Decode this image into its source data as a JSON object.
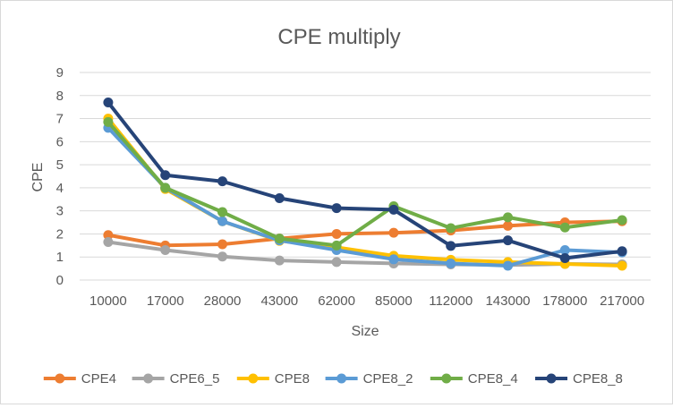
{
  "chart_data": {
    "type": "line",
    "title": "CPE multiply",
    "xlabel": "Size",
    "ylabel": "CPE",
    "ylim": [
      0,
      9
    ],
    "yticks": [
      0,
      1,
      2,
      3,
      4,
      5,
      6,
      7,
      8,
      9
    ],
    "grid": true,
    "legend": "bottom",
    "categories": [
      "10000",
      "17000",
      "28000",
      "43000",
      "62000",
      "85000",
      "112000",
      "143000",
      "178000",
      "217000"
    ],
    "series": [
      {
        "name": "CPE4",
        "color": "#ED7D31",
        "values": [
          1.95,
          1.5,
          1.55,
          1.8,
          2.0,
          2.05,
          2.15,
          2.35,
          2.5,
          2.55
        ]
      },
      {
        "name": "CPE6_5",
        "color": "#A5A5A5",
        "values": [
          1.65,
          1.3,
          1.02,
          0.85,
          0.78,
          0.72,
          0.68,
          0.65,
          0.7,
          0.68
        ]
      },
      {
        "name": "CPE8",
        "color": "#FFC000",
        "values": [
          7.0,
          3.95,
          2.55,
          1.7,
          1.42,
          1.05,
          0.88,
          0.78,
          0.7,
          0.62
        ]
      },
      {
        "name": "CPE8_2",
        "color": "#5B9BD5",
        "values": [
          6.6,
          4.0,
          2.55,
          1.72,
          1.3,
          0.9,
          0.72,
          0.62,
          1.3,
          1.2
        ]
      },
      {
        "name": "CPE8_4",
        "color": "#70AD47",
        "values": [
          6.85,
          4.0,
          2.95,
          1.8,
          1.5,
          3.2,
          2.25,
          2.72,
          2.28,
          2.6
        ]
      },
      {
        "name": "CPE8_8",
        "color": "#264478",
        "values": [
          7.7,
          4.55,
          4.28,
          3.55,
          3.12,
          3.05,
          1.48,
          1.72,
          0.95,
          1.25
        ]
      }
    ]
  }
}
